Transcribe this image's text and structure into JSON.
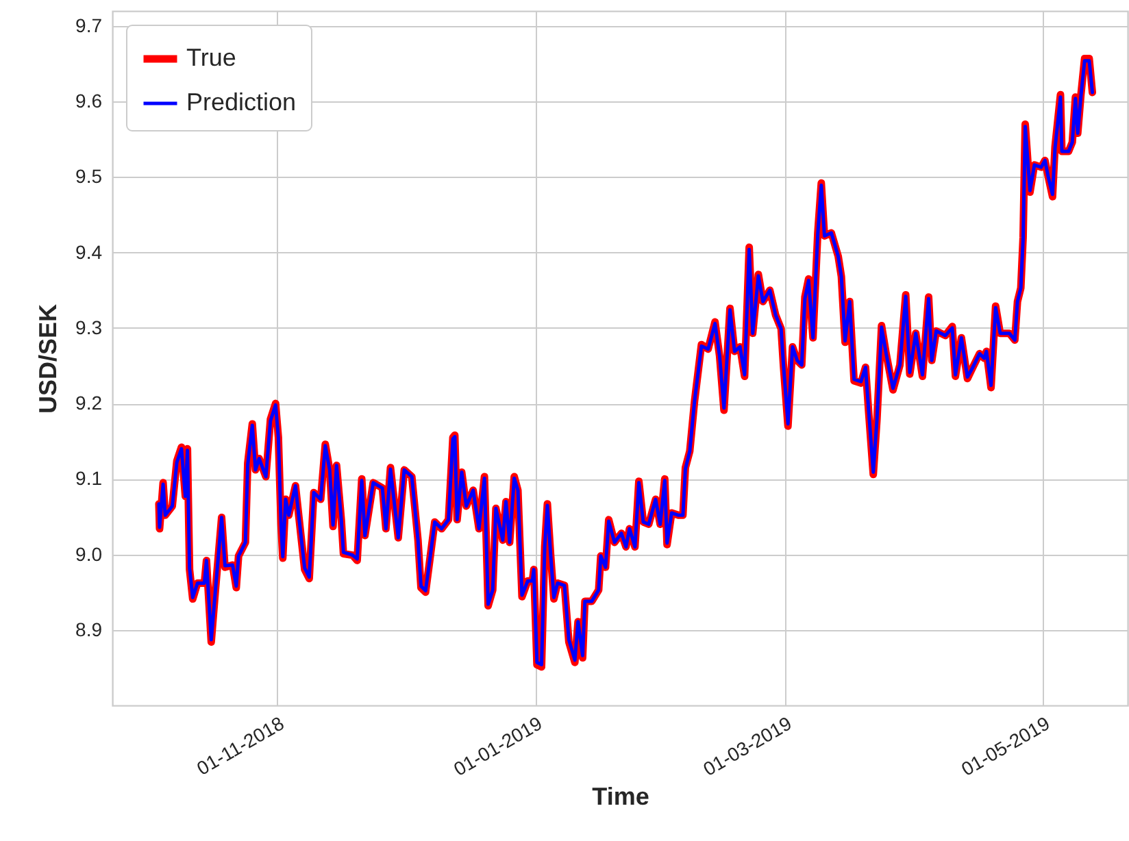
{
  "chart_data": {
    "type": "line",
    "xlabel": "Time",
    "ylabel": "USD/SEK",
    "x": [
      "2018-10-04T00:00",
      "2018-10-04T04:00",
      "2018-10-05T00:00",
      "2018-10-05T12:00",
      "2018-10-07T04:00",
      "2018-10-08T06:00",
      "2018-10-09T08:00",
      "2018-10-10T06:00",
      "2018-10-10T18:00",
      "2018-10-11T06:00",
      "2018-10-12T00:00",
      "2018-10-13T03:00",
      "2018-10-14T18:00",
      "2018-10-15T06:00",
      "2018-10-16T09:00",
      "2018-10-17T10:00",
      "2018-10-18T20:00",
      "2018-10-19T15:00",
      "2018-10-21T10:00",
      "2018-10-22T07:00",
      "2018-10-22T20:00",
      "2018-10-24T11:00",
      "2018-10-25T00:00",
      "2018-10-26T02:00",
      "2018-10-26T20:00",
      "2018-10-27T17:00",
      "2018-10-29T07:00",
      "2018-10-30T09:00",
      "2018-10-31T14:00",
      "2018-11-01T06:00",
      "2018-11-01T21:00",
      "2018-11-02T07:00",
      "2018-11-02T23:00",
      "2018-11-03T17:00",
      "2018-11-05T07:00",
      "2018-11-06T04:00",
      "2018-11-07T11:00",
      "2018-11-08T13:00",
      "2018-11-09T15:00",
      "2018-11-11T06:00",
      "2018-11-12T08:00",
      "2018-11-13T09:00",
      "2018-11-14T04:00",
      "2018-11-15T00:00",
      "2018-11-16T03:00",
      "2018-11-16T15:00",
      "2018-11-18T19:00",
      "2018-11-19T21:00",
      "2018-11-20T23:00",
      "2018-11-21T17:00",
      "2018-11-23T16:00",
      "2018-11-25T20:00",
      "2018-11-26T16:00",
      "2018-11-27T18:00",
      "2018-11-29T14:00",
      "2018-12-01T00:00",
      "2018-12-02T19:00",
      "2018-12-04T06:00",
      "2018-12-04T23:00",
      "2018-12-06T01:00",
      "2018-12-07T04:00",
      "2018-12-08T05:00",
      "2018-12-09T20:00",
      "2018-12-11T11:00",
      "2018-12-12T12:00",
      "2018-12-12T23:00",
      "2018-12-13T12:00",
      "2018-12-14T14:00",
      "2018-12-15T16:00",
      "2018-12-17T07:00",
      "2018-12-18T16:00",
      "2018-12-19T23:00",
      "2018-12-20T20:00",
      "2018-12-21T22:00",
      "2018-12-22T16:00",
      "2018-12-24T07:00",
      "2018-12-25T01:00",
      "2018-12-25T22:00",
      "2018-12-27T00:00",
      "2018-12-27T21:00",
      "2018-12-28T20:00",
      "2018-12-30T05:00",
      "2018-12-31T07:00",
      "2018-12-31T15:00",
      "2019-01-01T09:00",
      "2019-01-02T11:00",
      "2019-01-03T05:00",
      "2019-01-03T20:00",
      "2019-01-04T15:00",
      "2019-01-05T09:00",
      "2019-01-06T06:00",
      "2019-01-07T21:00",
      "2019-01-08T22:00",
      "2019-01-10T08:00",
      "2019-01-11T02:00",
      "2019-01-12T04:00",
      "2019-01-12T17:00",
      "2019-01-14T08:00",
      "2019-01-15T23:00",
      "2019-01-16T11:00",
      "2019-01-17T14:00",
      "2019-01-18T08:00",
      "2019-01-19T17:00",
      "2019-01-21T08:00",
      "2019-01-22T10:00",
      "2019-01-23T06:00",
      "2019-01-24T13:00",
      "2019-01-25T11:00",
      "2019-01-26T12:00",
      "2019-01-27T19:00",
      "2019-01-29T10:00",
      "2019-01-30T12:00",
      "2019-01-31T14:00",
      "2019-02-01T03:00",
      "2019-02-02T05:00",
      "2019-02-03T20:00",
      "2019-02-04T21:00",
      "2019-02-05T11:00",
      "2019-02-06T12:00",
      "2019-02-07T15:00",
      "2019-02-09T06:00",
      "2019-02-10T20:00",
      "2019-02-12T11:00",
      "2019-02-13T13:00",
      "2019-02-14T14:00",
      "2019-02-16T00:00",
      "2019-02-17T02:00",
      "2019-02-18T09:00",
      "2019-02-19T11:00",
      "2019-02-20T13:00",
      "2019-02-21T09:00",
      "2019-02-22T17:00",
      "2019-02-23T19:00",
      "2019-02-25T10:00",
      "2019-02-26T19:00",
      "2019-02-28T02:00",
      "2019-02-28T15:00",
      "2019-03-01T17:00",
      "2019-03-02T19:00",
      "2019-03-03T21:00",
      "2019-03-04T23:00",
      "2019-03-05T17:00",
      "2019-03-06T14:00",
      "2019-03-07T15:00",
      "2019-03-08T18:00",
      "2019-03-09T14:00",
      "2019-03-10T08:00",
      "2019-03-11T23:00",
      "2019-03-13T14:00",
      "2019-03-14T08:00",
      "2019-03-15T05:00",
      "2019-03-16T07:00",
      "2019-03-17T08:00",
      "2019-03-18T23:00",
      "2019-03-20T01:00",
      "2019-03-20T19:00",
      "2019-03-21T21:00",
      "2019-03-22T18:00",
      "2019-03-23T20:00",
      "2019-03-24T22:00",
      "2019-03-26T13:00",
      "2019-03-28T04:00",
      "2019-03-29T13:00",
      "2019-03-30T12:00",
      "2019-03-31T22:00",
      "2019-04-02T12:00",
      "2019-04-03T23:00",
      "2019-04-04T17:00",
      "2019-04-05T18:00",
      "2019-04-07T22:00",
      "2019-04-09T13:00",
      "2019-04-10T07:00",
      "2019-04-11T17:00",
      "2019-04-13T03:00",
      "2019-04-14T10:00",
      "2019-04-16T00:00",
      "2019-04-17T02:00",
      "2019-04-17T15:00",
      "2019-04-18T17:00",
      "2019-04-19T19:00",
      "2019-04-20T21:00",
      "2019-04-23T01:00",
      "2019-04-24T08:00",
      "2019-04-24T23:00",
      "2019-04-25T18:00",
      "2019-04-26T07:00",
      "2019-04-26T19:00",
      "2019-04-27T22:00",
      "2019-04-28T23:00",
      "2019-04-30T14:00",
      "2019-05-01T11:00",
      "2019-05-02T05:00",
      "2019-05-03T06:00",
      "2019-05-03T20:00",
      "2019-05-05T03:00",
      "2019-05-05T11:00",
      "2019-05-07T01:00",
      "2019-05-07T22:00",
      "2019-05-08T16:00",
      "2019-05-09T05:00",
      "2019-05-09T23:00",
      "2019-05-10T20:00",
      "2019-05-11T22:00",
      "2019-05-12T16:00"
    ],
    "series": [
      {
        "name": "True",
        "color": "#ff0000",
        "values": [
          9.067,
          9.034,
          9.095,
          9.052,
          9.064,
          9.124,
          9.142,
          9.077,
          9.14,
          8.98,
          8.941,
          8.962,
          8.962,
          8.992,
          8.884,
          8.956,
          9.049,
          8.983,
          8.986,
          8.956,
          8.998,
          9.016,
          9.121,
          9.173,
          9.112,
          9.127,
          9.103,
          9.179,
          9.2,
          9.155,
          9.04,
          8.995,
          9.073,
          9.052,
          9.091,
          9.046,
          8.98,
          8.968,
          9.082,
          9.073,
          9.146,
          9.112,
          9.037,
          9.118,
          9.046,
          9.001,
          8.999,
          8.992,
          9.1,
          9.025,
          9.095,
          9.088,
          9.034,
          9.115,
          9.022,
          9.112,
          9.103,
          9.019,
          8.956,
          8.95,
          8.998,
          9.043,
          9.034,
          9.046,
          9.155,
          9.158,
          9.046,
          9.109,
          9.064,
          9.085,
          9.034,
          9.103,
          8.932,
          8.953,
          9.061,
          9.019,
          9.07,
          9.016,
          9.103,
          9.085,
          8.944,
          8.965,
          8.965,
          8.98,
          8.854,
          8.851,
          9.01,
          9.067,
          8.998,
          8.941,
          8.962,
          8.959,
          8.884,
          8.857,
          8.911,
          8.863,
          8.938,
          8.938,
          8.953,
          8.998,
          8.983,
          9.046,
          9.016,
          9.028,
          9.01,
          9.034,
          9.01,
          9.097,
          9.043,
          9.04,
          9.073,
          9.04,
          9.1,
          9.013,
          9.055,
          9.052,
          9.052,
          9.115,
          9.137,
          9.203,
          9.278,
          9.272,
          9.308,
          9.263,
          9.191,
          9.326,
          9.269,
          9.275,
          9.236,
          9.407,
          9.293,
          9.371,
          9.335,
          9.35,
          9.317,
          9.299,
          9.251,
          9.17,
          9.275,
          9.257,
          9.251,
          9.341,
          9.365,
          9.287,
          9.426,
          9.492,
          9.422,
          9.426,
          9.395,
          9.368,
          9.281,
          9.335,
          9.23,
          9.227,
          9.248,
          9.188,
          9.106,
          9.179,
          9.303,
          9.266,
          9.218,
          9.251,
          9.344,
          9.239,
          9.293,
          9.236,
          9.341,
          9.257,
          9.296,
          9.29,
          9.302,
          9.236,
          9.287,
          9.233,
          9.248,
          9.266,
          9.26,
          9.269,
          9.221,
          9.329,
          9.293,
          9.293,
          9.284,
          9.335,
          9.353,
          9.42,
          9.57,
          9.48,
          9.516,
          9.513,
          9.522,
          9.501,
          9.474,
          9.54,
          9.609,
          9.534,
          9.534,
          9.546,
          9.606,
          9.558,
          9.609,
          9.657,
          9.657,
          9.612
        ]
      },
      {
        "name": "Prediction",
        "color": "#0000ff",
        "values": [
          9.067,
          9.036,
          9.093,
          9.052,
          9.064,
          9.122,
          9.14,
          9.077,
          9.138,
          8.982,
          8.943,
          8.962,
          8.962,
          8.992,
          8.887,
          8.956,
          9.049,
          8.985,
          8.986,
          8.958,
          8.998,
          9.016,
          9.119,
          9.171,
          9.112,
          9.127,
          9.103,
          9.177,
          9.198,
          9.155,
          9.04,
          8.997,
          9.073,
          9.052,
          9.091,
          9.046,
          8.982,
          8.97,
          9.082,
          9.073,
          9.144,
          9.112,
          9.039,
          9.118,
          9.046,
          9.003,
          8.999,
          8.994,
          9.098,
          9.025,
          9.095,
          9.088,
          9.034,
          9.113,
          9.022,
          9.112,
          9.103,
          9.019,
          8.958,
          8.952,
          8.998,
          9.043,
          9.034,
          9.046,
          9.153,
          9.156,
          9.046,
          9.109,
          9.064,
          9.085,
          9.034,
          9.101,
          8.934,
          8.953,
          9.061,
          9.019,
          9.07,
          9.016,
          9.101,
          9.085,
          8.946,
          8.965,
          8.965,
          8.98,
          8.857,
          8.854,
          9.01,
          9.065,
          8.998,
          8.943,
          8.962,
          8.959,
          8.887,
          8.86,
          8.911,
          8.866,
          8.938,
          8.938,
          8.953,
          8.998,
          8.983,
          9.044,
          9.016,
          9.028,
          9.01,
          9.034,
          9.01,
          9.095,
          9.043,
          9.04,
          9.073,
          9.04,
          9.098,
          9.015,
          9.055,
          9.052,
          9.052,
          9.113,
          9.137,
          9.203,
          9.276,
          9.272,
          9.306,
          9.263,
          9.194,
          9.324,
          9.269,
          9.275,
          9.238,
          9.404,
          9.293,
          9.369,
          9.335,
          9.35,
          9.317,
          9.299,
          9.253,
          9.173,
          9.275,
          9.257,
          9.251,
          9.339,
          9.363,
          9.287,
          9.424,
          9.489,
          9.422,
          9.426,
          9.395,
          9.368,
          9.283,
          9.335,
          9.232,
          9.229,
          9.248,
          9.19,
          9.109,
          9.179,
          9.301,
          9.266,
          9.22,
          9.251,
          9.342,
          9.241,
          9.293,
          9.238,
          9.339,
          9.257,
          9.296,
          9.29,
          9.3,
          9.238,
          9.287,
          9.235,
          9.248,
          9.266,
          9.26,
          9.269,
          9.224,
          9.327,
          9.293,
          9.293,
          9.284,
          9.335,
          9.353,
          9.418,
          9.567,
          9.482,
          9.516,
          9.513,
          9.522,
          9.501,
          9.477,
          9.538,
          9.606,
          9.534,
          9.534,
          9.546,
          9.604,
          9.558,
          9.607,
          9.654,
          9.654,
          9.612
        ]
      }
    ],
    "xlim": [
      "2018-09-23",
      "2019-05-21"
    ],
    "xticks": [
      {
        "value": "2018-11-01",
        "label": "01-11-2018"
      },
      {
        "value": "2019-01-01",
        "label": "01-01-2019"
      },
      {
        "value": "2019-03-01",
        "label": "01-03-2019"
      },
      {
        "value": "2019-05-01",
        "label": "01-05-2019"
      }
    ],
    "ylim": [
      8.8,
      9.72
    ],
    "yticks": [
      8.9,
      {
        "value": 9,
        "label": "9.0"
      },
      9.1,
      9.2,
      9.3,
      9.4,
      9.5,
      9.6,
      9.7
    ],
    "grid": true,
    "legend": "top left",
    "marker": "none",
    "line_style": "solid"
  }
}
